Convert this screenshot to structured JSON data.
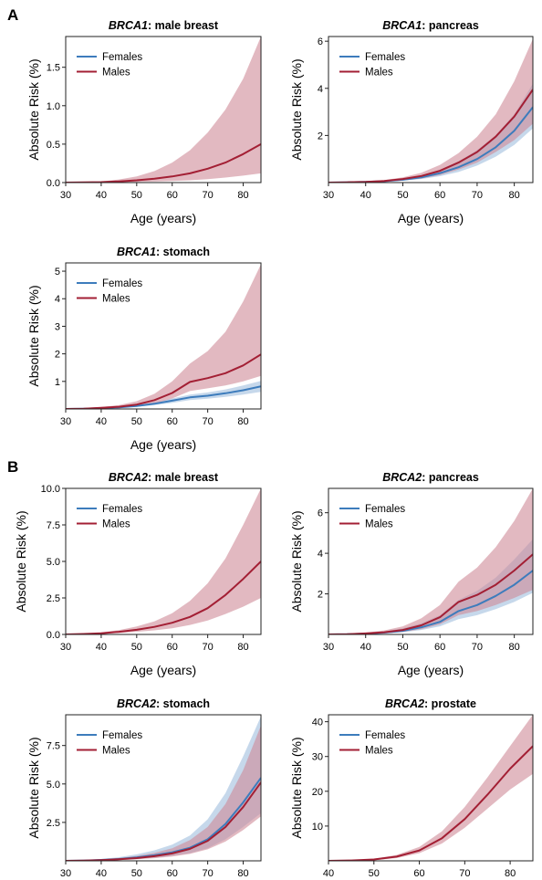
{
  "figure": {
    "sections": [
      {
        "letter": "A",
        "panels": [
          0,
          1,
          2
        ]
      },
      {
        "letter": "B",
        "panels": [
          3,
          4,
          5,
          6
        ]
      }
    ]
  },
  "colors": {
    "female": "#3d7cbc",
    "female_band": "#a7c3e1",
    "male": "#a31f34",
    "male_band": "#cf8a98"
  },
  "chart_data": [
    {
      "type": "line",
      "title_gene": "BRCA1",
      "title_site": ": male breast",
      "xlabel": "Age (years)",
      "ylabel": "Absolute Risk (%)",
      "xlim": [
        30,
        85
      ],
      "ylim": [
        0,
        1.9
      ],
      "xticks": [
        "30",
        "40",
        "50",
        "60",
        "70",
        "80"
      ],
      "yticks": [
        "0.0",
        "0.5",
        "1.0",
        "1.5"
      ],
      "ytick_values": [
        0,
        0.5,
        1.0,
        1.5
      ],
      "legend": [
        "Females",
        "Males"
      ],
      "x": [
        30,
        35,
        40,
        45,
        50,
        55,
        60,
        65,
        70,
        75,
        80,
        85
      ],
      "series": [
        {
          "name": "Males",
          "color_key": "male",
          "values": [
            0,
            0.002,
            0.006,
            0.015,
            0.03,
            0.05,
            0.08,
            0.12,
            0.18,
            0.26,
            0.37,
            0.5
          ],
          "lower": [
            0,
            0.001,
            0.002,
            0.004,
            0.008,
            0.013,
            0.02,
            0.03,
            0.045,
            0.065,
            0.09,
            0.12
          ],
          "upper": [
            0,
            0.004,
            0.015,
            0.04,
            0.08,
            0.15,
            0.26,
            0.42,
            0.65,
            0.95,
            1.35,
            1.9
          ]
        }
      ]
    },
    {
      "type": "line",
      "title_gene": "BRCA1",
      "title_site": ": pancreas",
      "xlabel": "Age (years)",
      "ylabel": "Absolute Risk (%)",
      "xlim": [
        30,
        85
      ],
      "ylim": [
        0,
        6.2
      ],
      "xticks": [
        "30",
        "40",
        "50",
        "60",
        "70",
        "80"
      ],
      "yticks": [
        "2",
        "4",
        "6"
      ],
      "ytick_values": [
        2,
        4,
        6
      ],
      "legend": [
        "Females",
        "Males"
      ],
      "x": [
        30,
        35,
        40,
        45,
        50,
        55,
        60,
        65,
        70,
        75,
        80,
        85
      ],
      "series": [
        {
          "name": "Females",
          "color_key": "female",
          "values": [
            0,
            0.01,
            0.03,
            0.06,
            0.12,
            0.22,
            0.4,
            0.65,
            1.0,
            1.5,
            2.2,
            3.2
          ],
          "lower": [
            0,
            0.005,
            0.015,
            0.04,
            0.08,
            0.15,
            0.27,
            0.45,
            0.72,
            1.1,
            1.6,
            2.3
          ],
          "upper": [
            0,
            0.02,
            0.05,
            0.09,
            0.17,
            0.3,
            0.55,
            0.9,
            1.38,
            2.0,
            2.9,
            4.2
          ]
        },
        {
          "name": "Males",
          "color_key": "male",
          "values": [
            0,
            0.01,
            0.03,
            0.07,
            0.15,
            0.28,
            0.5,
            0.85,
            1.3,
            1.95,
            2.8,
            3.95
          ],
          "lower": [
            0,
            0.005,
            0.015,
            0.04,
            0.09,
            0.17,
            0.32,
            0.55,
            0.85,
            1.3,
            1.8,
            2.5
          ],
          "upper": [
            0,
            0.02,
            0.05,
            0.11,
            0.22,
            0.42,
            0.75,
            1.25,
            1.95,
            2.9,
            4.3,
            6.1
          ]
        }
      ]
    },
    {
      "type": "line",
      "title_gene": "BRCA1",
      "title_site": ": stomach",
      "xlabel": "Age (years)",
      "ylabel": "Absolute Risk (%)",
      "xlim": [
        30,
        85
      ],
      "ylim": [
        0,
        5.3
      ],
      "xticks": [
        "30",
        "40",
        "50",
        "60",
        "70",
        "80"
      ],
      "yticks": [
        "1",
        "2",
        "3",
        "4",
        "5"
      ],
      "ytick_values": [
        1,
        2,
        3,
        4,
        5
      ],
      "legend": [
        "Females",
        "Males"
      ],
      "x": [
        30,
        35,
        40,
        45,
        50,
        55,
        60,
        65,
        70,
        75,
        80,
        85
      ],
      "series": [
        {
          "name": "Females",
          "color_key": "female",
          "values": [
            0,
            0.01,
            0.03,
            0.06,
            0.11,
            0.19,
            0.3,
            0.42,
            0.48,
            0.57,
            0.68,
            0.82
          ],
          "lower": [
            0,
            0.005,
            0.02,
            0.04,
            0.08,
            0.14,
            0.22,
            0.32,
            0.37,
            0.44,
            0.52,
            0.62
          ],
          "upper": [
            0,
            0.015,
            0.04,
            0.08,
            0.14,
            0.24,
            0.38,
            0.52,
            0.6,
            0.71,
            0.85,
            1.02
          ]
        },
        {
          "name": "Males",
          "color_key": "male",
          "values": [
            0,
            0.01,
            0.04,
            0.08,
            0.16,
            0.32,
            0.58,
            0.98,
            1.12,
            1.3,
            1.58,
            1.98
          ],
          "lower": [
            0,
            0.005,
            0.02,
            0.05,
            0.1,
            0.2,
            0.38,
            0.65,
            0.75,
            0.85,
            1.0,
            1.2
          ],
          "upper": [
            0,
            0.02,
            0.07,
            0.14,
            0.28,
            0.55,
            1.0,
            1.65,
            2.1,
            2.8,
            3.9,
            5.25
          ]
        }
      ]
    },
    {
      "type": "line",
      "title_gene": "BRCA2",
      "title_site": ": male breast",
      "xlabel": "Age (years)",
      "ylabel": "Absolute Risk (%)",
      "xlim": [
        30,
        85
      ],
      "ylim": [
        0,
        10
      ],
      "xticks": [
        "30",
        "40",
        "50",
        "60",
        "70",
        "80"
      ],
      "yticks": [
        "0.0",
        "2.5",
        "5.0",
        "7.5",
        "10.0"
      ],
      "ytick_values": [
        0,
        2.5,
        5.0,
        7.5,
        10.0
      ],
      "legend": [
        "Females",
        "Males"
      ],
      "x": [
        30,
        35,
        40,
        45,
        50,
        55,
        60,
        65,
        70,
        75,
        80,
        85
      ],
      "series": [
        {
          "name": "Males",
          "color_key": "male",
          "values": [
            0,
            0.03,
            0.08,
            0.18,
            0.32,
            0.52,
            0.8,
            1.2,
            1.8,
            2.7,
            3.8,
            5.0
          ],
          "lower": [
            0,
            0.02,
            0.05,
            0.1,
            0.18,
            0.28,
            0.42,
            0.65,
            0.95,
            1.4,
            1.9,
            2.5
          ],
          "upper": [
            0,
            0.05,
            0.14,
            0.3,
            0.55,
            0.9,
            1.45,
            2.3,
            3.5,
            5.2,
            7.5,
            10.0
          ]
        }
      ]
    },
    {
      "type": "line",
      "title_gene": "BRCA2",
      "title_site": ": pancreas",
      "xlabel": "Age (years)",
      "ylabel": "Absolute Risk (%)",
      "xlim": [
        30,
        85
      ],
      "ylim": [
        0,
        7.2
      ],
      "xticks": [
        "30",
        "40",
        "50",
        "60",
        "70",
        "80"
      ],
      "yticks": [
        "2",
        "4",
        "6"
      ],
      "ytick_values": [
        2,
        4,
        6
      ],
      "legend": [
        "Females",
        "Males"
      ],
      "x": [
        30,
        35,
        40,
        45,
        50,
        55,
        60,
        65,
        70,
        75,
        80,
        85
      ],
      "series": [
        {
          "name": "Females",
          "color_key": "female",
          "values": [
            0,
            0.01,
            0.04,
            0.09,
            0.18,
            0.35,
            0.62,
            1.15,
            1.45,
            1.9,
            2.45,
            3.15
          ],
          "lower": [
            0,
            0.005,
            0.02,
            0.05,
            0.11,
            0.22,
            0.4,
            0.75,
            0.95,
            1.25,
            1.6,
            2.05
          ],
          "upper": [
            0,
            0.02,
            0.07,
            0.15,
            0.3,
            0.55,
            0.95,
            1.7,
            2.15,
            2.8,
            3.7,
            4.7
          ]
        },
        {
          "name": "Males",
          "color_key": "male",
          "values": [
            0,
            0.01,
            0.05,
            0.11,
            0.22,
            0.45,
            0.85,
            1.6,
            1.95,
            2.45,
            3.15,
            3.95
          ],
          "lower": [
            0,
            0.005,
            0.02,
            0.06,
            0.12,
            0.26,
            0.5,
            0.95,
            1.15,
            1.45,
            1.8,
            2.2
          ],
          "upper": [
            0,
            0.03,
            0.09,
            0.2,
            0.4,
            0.8,
            1.45,
            2.6,
            3.3,
            4.3,
            5.6,
            7.2
          ]
        }
      ]
    },
    {
      "type": "line",
      "title_gene": "BRCA2",
      "title_site": ": stomach",
      "xlabel": "",
      "ylabel": "Absolute Risk (%)",
      "xlim": [
        30,
        85
      ],
      "ylim": [
        0,
        9.5
      ],
      "xticks": [
        "30",
        "40",
        "50",
        "60",
        "70",
        "80"
      ],
      "yticks": [
        "2.5",
        "5.0",
        "7.5"
      ],
      "ytick_values": [
        2.5,
        5.0,
        7.5
      ],
      "legend": [
        "Females",
        "Males"
      ],
      "x": [
        30,
        35,
        40,
        45,
        50,
        55,
        60,
        65,
        70,
        75,
        80,
        85
      ],
      "series": [
        {
          "name": "Females",
          "color_key": "female",
          "values": [
            0,
            0.02,
            0.06,
            0.12,
            0.22,
            0.36,
            0.55,
            0.85,
            1.4,
            2.4,
            3.8,
            5.4
          ],
          "lower": [
            0,
            0.01,
            0.03,
            0.06,
            0.12,
            0.2,
            0.32,
            0.5,
            0.82,
            1.4,
            2.2,
            3.1
          ],
          "upper": [
            0,
            0.04,
            0.12,
            0.24,
            0.42,
            0.68,
            1.05,
            1.65,
            2.7,
            4.4,
            6.8,
            9.4
          ]
        },
        {
          "name": "Males",
          "color_key": "male",
          "values": [
            0,
            0.02,
            0.05,
            0.1,
            0.18,
            0.3,
            0.48,
            0.78,
            1.3,
            2.2,
            3.5,
            5.1
          ],
          "lower": [
            0,
            0.01,
            0.03,
            0.05,
            0.1,
            0.17,
            0.28,
            0.45,
            0.75,
            1.25,
            2.0,
            2.9
          ],
          "upper": [
            0,
            0.03,
            0.09,
            0.18,
            0.32,
            0.52,
            0.82,
            1.35,
            2.2,
            3.7,
            5.9,
            8.8
          ]
        }
      ]
    },
    {
      "type": "line",
      "title_gene": "BRCA2",
      "title_site": ": prostate",
      "xlabel": "",
      "ylabel": "Absolute Risk (%)",
      "xlim": [
        40,
        85
      ],
      "ylim": [
        0,
        42
      ],
      "xticks": [
        "40",
        "50",
        "60",
        "70",
        "80"
      ],
      "yticks": [
        "10",
        "20",
        "30",
        "40"
      ],
      "ytick_values": [
        10,
        20,
        30,
        40
      ],
      "legend": [
        "Females",
        "Males"
      ],
      "x": [
        40,
        45,
        50,
        55,
        60,
        65,
        70,
        75,
        80,
        85
      ],
      "series": [
        {
          "name": "Males",
          "color_key": "male",
          "values": [
            0,
            0.1,
            0.4,
            1.2,
            3.0,
            6.5,
            12.0,
            19.0,
            26.5,
            33.0
          ],
          "lower": [
            0,
            0.05,
            0.2,
            0.8,
            2.2,
            5.0,
            9.5,
            15.0,
            20.5,
            25.0
          ],
          "upper": [
            0,
            0.15,
            0.6,
            1.7,
            4.0,
            8.5,
            15.5,
            24.0,
            33.0,
            42.0
          ]
        }
      ]
    }
  ]
}
